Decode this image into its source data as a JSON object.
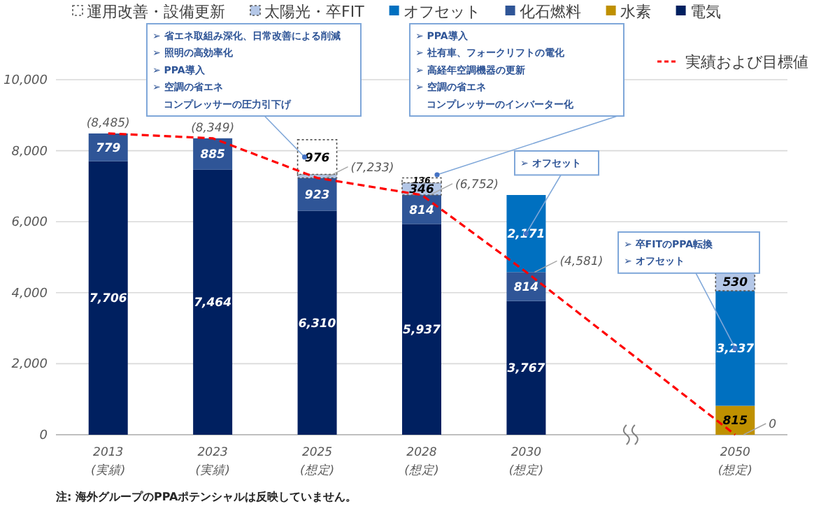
{
  "chart_data": {
    "type": "bar",
    "stacked": true,
    "categories": [
      "2013\n(実績)",
      "2023\n(実績)",
      "2025\n(想定)",
      "2028\n(想定)",
      "2030\n(想定)",
      null,
      "2050\n(想定)"
    ],
    "series": [
      {
        "name": "電気",
        "color": "#002060",
        "values": [
          7706,
          7464,
          6310,
          5937,
          3767,
          null,
          null
        ],
        "value_labels": [
          "7,706",
          "7,464",
          "6,310",
          "5,937",
          "3,767",
          null,
          null
        ]
      },
      {
        "name": "水素",
        "color": "#bf9000",
        "values": [
          null,
          null,
          null,
          null,
          null,
          null,
          815
        ],
        "value_labels": [
          null,
          null,
          null,
          null,
          null,
          null,
          "815"
        ]
      },
      {
        "name": "化石燃料",
        "color": "#2f5597",
        "values": [
          779,
          885,
          923,
          814,
          814,
          null,
          null
        ],
        "value_labels": [
          "779",
          "885",
          "923",
          "814",
          "814",
          null,
          null
        ]
      },
      {
        "name": "オフセット",
        "color": "#0070c0",
        "values": [
          null,
          null,
          null,
          null,
          2171,
          null,
          3237
        ],
        "value_labels": [
          null,
          null,
          null,
          null,
          "2,171",
          null,
          "3,237"
        ]
      },
      {
        "name": "太陽光・卒FIT",
        "color": "#b4c7e7",
        "values": [
          null,
          null,
          100,
          346,
          null,
          null,
          530
        ],
        "value_labels": [
          null,
          null,
          null,
          "346",
          null,
          null,
          "530"
        ]
      },
      {
        "name": "運用改善・設備更新",
        "color": "#ffffff",
        "values": [
          null,
          null,
          976,
          136,
          null,
          null,
          null
        ],
        "value_labels": [
          null,
          null,
          "976",
          "136",
          null,
          null,
          null
        ]
      },
      {
        "name": "実績および目標値",
        "type": "line",
        "color": "#ff0000",
        "line_style": "dashed",
        "marker": "none",
        "values": [
          8485,
          8349,
          7233,
          6752,
          4581,
          null,
          0
        ],
        "value_labels": [
          "(8,485)",
          "(8,349)",
          "(7,233)",
          "(6,752)",
          "(4,581)",
          null,
          "0"
        ]
      }
    ],
    "ylim": [
      0,
      10000
    ],
    "yticks": [
      {
        "value": 0,
        "label": "0"
      },
      {
        "value": 2000,
        "label": "2,000"
      },
      {
        "value": 4000,
        "label": "4,000"
      },
      {
        "value": 6000,
        "label": "6,000"
      },
      {
        "value": 8000,
        "label": "8,000"
      },
      {
        "value": 10000,
        "label": "10,000"
      }
    ],
    "grid": "y",
    "legend": "top",
    "annotations": [
      "➢ 省エネ取組み深化、日常改善による削減",
      "➢ 照明の高効率化",
      "➢ PPA導入",
      "➢ 空調の省エネ",
      "コンプレッサーの圧力引下げ",
      "➢ PPA導入",
      "➢ 社有車、フォークリフトの電化",
      "➢ 高経年空調機器の更新",
      "➢ 空調の省エネ",
      "コンプレッサーのインバーター化",
      "➢ オフセット",
      "➢ 卒FITのPPA転換",
      "➢ オフセット",
      "注: 海外グループのPPAポテンシャルは反映していません。"
    ]
  }
}
